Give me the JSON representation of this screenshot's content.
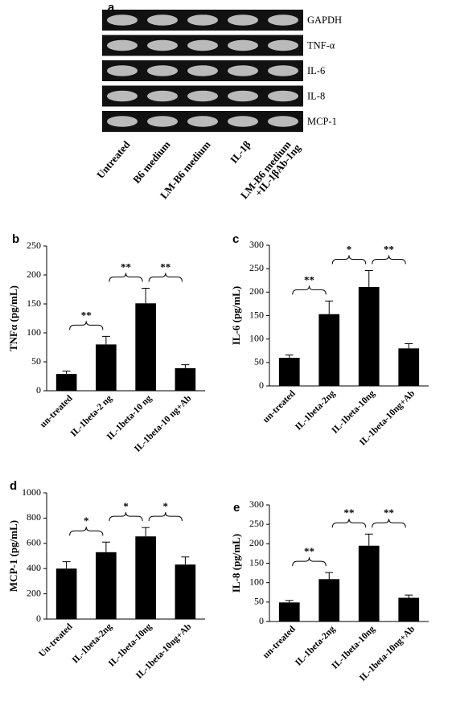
{
  "gel": {
    "panel": "a",
    "genes": [
      "GAPDH",
      "TNF-α",
      "IL-6",
      "IL-8",
      "MCP-1"
    ],
    "lanes": [
      "Untreated",
      "B6 medium",
      "LM-B6 medium",
      "IL-1β",
      [
        "LM-B6 medium",
        "+IL-1βAb-1ng"
      ]
    ]
  },
  "chart_data": [
    {
      "type": "bar",
      "panel": "b",
      "ylabel": "TNFα (pg/mL)",
      "categories": [
        "un-treated",
        "IL-1beta-2 ng",
        "IL-1beta-10 ng",
        "IL-1beta-10 ng+Ab"
      ],
      "values": [
        29,
        80,
        151,
        39
      ],
      "errors": [
        5,
        14,
        26,
        6
      ],
      "color": "#000000",
      "ylim": [
        0,
        250
      ],
      "yticks": [
        0,
        50,
        100,
        150,
        200,
        250
      ],
      "annotations": [
        "**",
        "**",
        "**"
      ]
    },
    {
      "type": "bar",
      "panel": "c",
      "ylabel": "IL-6 (pg/mL)",
      "categories": [
        "un-treated",
        "IL-1beta-2ng",
        "IL-1beta-10ng",
        "IL-1beta-10ng+Ab"
      ],
      "values": [
        60,
        153,
        211,
        80
      ],
      "errors": [
        6,
        28,
        35,
        10
      ],
      "color": "#000000",
      "ylim": [
        0,
        300
      ],
      "yticks": [
        0,
        50,
        100,
        150,
        200,
        250,
        300
      ],
      "annotations": [
        "**",
        "*",
        "**"
      ]
    },
    {
      "type": "bar",
      "panel": "d",
      "ylabel": "MCP-1 (pg/mL)",
      "categories": [
        "Un-treated",
        "IL-1beta-2ng",
        "IL-1beta-10ng",
        "IL-1beta-10ng+Ab"
      ],
      "values": [
        400,
        530,
        655,
        432
      ],
      "errors": [
        55,
        80,
        70,
        60
      ],
      "color": "#000000",
      "ylim": [
        0,
        1000
      ],
      "yticks": [
        0,
        200,
        400,
        600,
        800,
        1000
      ],
      "annotations": [
        "*",
        "*",
        "*"
      ]
    },
    {
      "type": "bar",
      "panel": "e",
      "ylabel": "IL-8 (pg/mL)",
      "categories": [
        "un-treated",
        "IL-1beta-2ng",
        "IL-1beta-10ng",
        "IL-1beta-10ng+Ab"
      ],
      "values": [
        49,
        109,
        195,
        61
      ],
      "errors": [
        5,
        17,
        30,
        7
      ],
      "color": "#000000",
      "ylim": [
        0,
        300
      ],
      "yticks": [
        0,
        50,
        100,
        150,
        200,
        250,
        300
      ],
      "annotations": [
        "**",
        "**",
        "**"
      ]
    }
  ]
}
